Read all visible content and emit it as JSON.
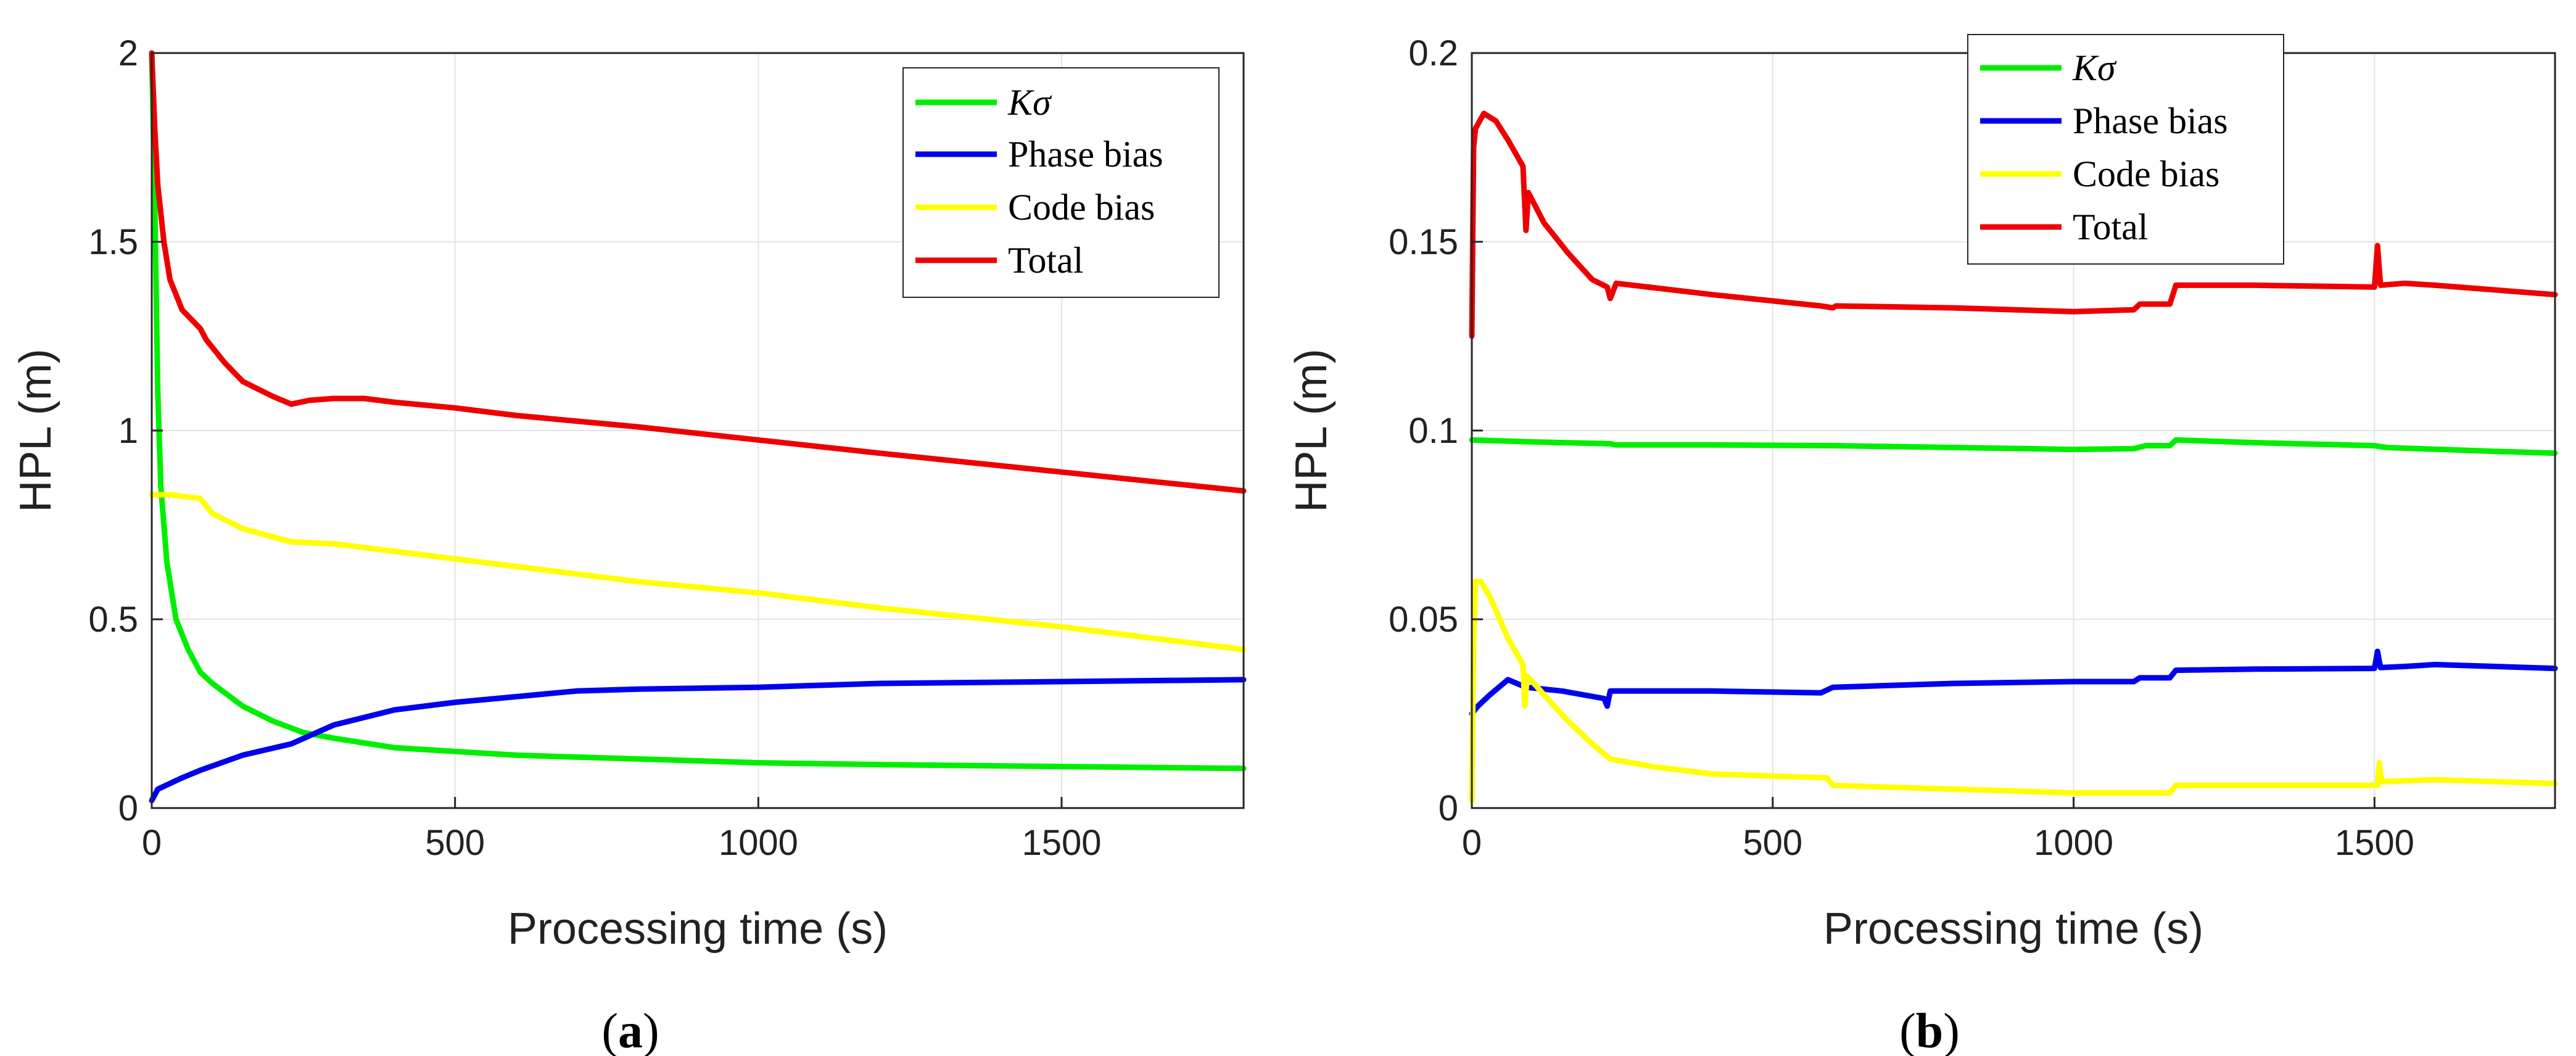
{
  "chart_data": [
    {
      "type": "line",
      "panel": "a",
      "caption_letter": "a",
      "xlabel": "Processing time (s)",
      "ylabel": "HPL (m)",
      "xlim": [
        0,
        1800
      ],
      "ylim": [
        0,
        2
      ],
      "xticks": [
        0,
        500,
        1000,
        1500
      ],
      "yticks": [
        0,
        0.5,
        1,
        1.5,
        2
      ],
      "ytick_labels": [
        "0",
        "0.5",
        "1",
        "1.5",
        "2"
      ],
      "legend_position": "top-right",
      "series": [
        {
          "name": "Kσ",
          "color": "#00ee00",
          "points": [
            [
              0,
              2.0
            ],
            [
              5,
              1.6
            ],
            [
              10,
              1.1
            ],
            [
              15,
              0.85
            ],
            [
              25,
              0.65
            ],
            [
              40,
              0.5
            ],
            [
              60,
              0.42
            ],
            [
              80,
              0.36
            ],
            [
              100,
              0.33
            ],
            [
              150,
              0.27
            ],
            [
              200,
              0.23
            ],
            [
              250,
              0.2
            ],
            [
              300,
              0.185
            ],
            [
              400,
              0.16
            ],
            [
              500,
              0.15
            ],
            [
              600,
              0.14
            ],
            [
              800,
              0.13
            ],
            [
              1000,
              0.12
            ],
            [
              1200,
              0.115
            ],
            [
              1500,
              0.11
            ],
            [
              1800,
              0.105
            ]
          ]
        },
        {
          "name": "Phase bias",
          "color": "#0000ee",
          "points": [
            [
              0,
              0.02
            ],
            [
              10,
              0.05
            ],
            [
              50,
              0.08
            ],
            [
              80,
              0.1
            ],
            [
              150,
              0.14
            ],
            [
              230,
              0.17
            ],
            [
              300,
              0.22
            ],
            [
              400,
              0.26
            ],
            [
              500,
              0.28
            ],
            [
              600,
              0.295
            ],
            [
              700,
              0.31
            ],
            [
              800,
              0.315
            ],
            [
              1000,
              0.32
            ],
            [
              1200,
              0.33
            ],
            [
              1500,
              0.335
            ],
            [
              1800,
              0.34
            ]
          ]
        },
        {
          "name": "Code bias",
          "color": "#ffff00",
          "points": [
            [
              0,
              0.83
            ],
            [
              30,
              0.83
            ],
            [
              80,
              0.82
            ],
            [
              100,
              0.78
            ],
            [
              150,
              0.74
            ],
            [
              230,
              0.705
            ],
            [
              300,
              0.7
            ],
            [
              400,
              0.68
            ],
            [
              500,
              0.66
            ],
            [
              600,
              0.64
            ],
            [
              800,
              0.6
            ],
            [
              1000,
              0.57
            ],
            [
              1200,
              0.53
            ],
            [
              1500,
              0.48
            ],
            [
              1800,
              0.42
            ]
          ]
        },
        {
          "name": "Total",
          "color": "#ee0000",
          "points": [
            [
              0,
              2.0
            ],
            [
              5,
              1.8
            ],
            [
              10,
              1.65
            ],
            [
              20,
              1.5
            ],
            [
              30,
              1.4
            ],
            [
              50,
              1.32
            ],
            [
              80,
              1.27
            ],
            [
              90,
              1.24
            ],
            [
              120,
              1.18
            ],
            [
              150,
              1.13
            ],
            [
              200,
              1.09
            ],
            [
              230,
              1.07
            ],
            [
              260,
              1.08
            ],
            [
              300,
              1.085
            ],
            [
              350,
              1.085
            ],
            [
              400,
              1.075
            ],
            [
              500,
              1.06
            ],
            [
              600,
              1.04
            ],
            [
              800,
              1.01
            ],
            [
              1000,
              0.975
            ],
            [
              1200,
              0.94
            ],
            [
              1500,
              0.89
            ],
            [
              1800,
              0.84
            ]
          ]
        }
      ]
    },
    {
      "type": "line",
      "panel": "b",
      "caption_letter": "b",
      "xlabel": "Processing time (s)",
      "ylabel": "HPL (m)",
      "xlim": [
        0,
        1800
      ],
      "ylim": [
        0,
        0.2
      ],
      "xticks": [
        0,
        500,
        1000,
        1500
      ],
      "yticks": [
        0,
        0.05,
        0.1,
        0.15,
        0.2
      ],
      "ytick_labels": [
        "0",
        "0.05",
        "0.1",
        "0.15",
        "0.2"
      ],
      "legend_position": "top-center",
      "series": [
        {
          "name": "Kσ",
          "color": "#00ee00",
          "points": [
            [
              0,
              0.0975
            ],
            [
              100,
              0.097
            ],
            [
              230,
              0.0965
            ],
            [
              240,
              0.0962
            ],
            [
              400,
              0.0962
            ],
            [
              600,
              0.096
            ],
            [
              800,
              0.0955
            ],
            [
              1000,
              0.095
            ],
            [
              1100,
              0.0952
            ],
            [
              1120,
              0.096
            ],
            [
              1160,
              0.096
            ],
            [
              1170,
              0.0975
            ],
            [
              1300,
              0.0968
            ],
            [
              1500,
              0.096
            ],
            [
              1520,
              0.0955
            ],
            [
              1700,
              0.0945
            ],
            [
              1800,
              0.094
            ]
          ]
        },
        {
          "name": "Phase bias",
          "color": "#0000ee",
          "points": [
            [
              0,
              0.025
            ],
            [
              10,
              0.027
            ],
            [
              30,
              0.03
            ],
            [
              60,
              0.034
            ],
            [
              90,
              0.032
            ],
            [
              150,
              0.031
            ],
            [
              220,
              0.029
            ],
            [
              225,
              0.027
            ],
            [
              230,
              0.031
            ],
            [
              400,
              0.031
            ],
            [
              580,
              0.0305
            ],
            [
              600,
              0.032
            ],
            [
              800,
              0.033
            ],
            [
              1000,
              0.0335
            ],
            [
              1100,
              0.0335
            ],
            [
              1110,
              0.0345
            ],
            [
              1160,
              0.0345
            ],
            [
              1170,
              0.0365
            ],
            [
              1300,
              0.0368
            ],
            [
              1500,
              0.037
            ],
            [
              1505,
              0.0415
            ],
            [
              1510,
              0.0372
            ],
            [
              1550,
              0.0375
            ],
            [
              1600,
              0.038
            ],
            [
              1800,
              0.037
            ]
          ]
        },
        {
          "name": "Code bias",
          "color": "#ffff00",
          "points": [
            [
              0,
              0.002
            ],
            [
              3,
              0.045
            ],
            [
              6,
              0.06
            ],
            [
              15,
              0.06
            ],
            [
              30,
              0.056
            ],
            [
              60,
              0.045
            ],
            [
              85,
              0.038
            ],
            [
              88,
              0.027
            ],
            [
              92,
              0.035
            ],
            [
              120,
              0.03
            ],
            [
              160,
              0.023
            ],
            [
              200,
              0.017
            ],
            [
              230,
              0.013
            ],
            [
              300,
              0.011
            ],
            [
              400,
              0.009
            ],
            [
              590,
              0.008
            ],
            [
              600,
              0.006
            ],
            [
              800,
              0.005
            ],
            [
              1000,
              0.004
            ],
            [
              1160,
              0.004
            ],
            [
              1170,
              0.006
            ],
            [
              1400,
              0.006
            ],
            [
              1505,
              0.006
            ],
            [
              1508,
              0.012
            ],
            [
              1512,
              0.007
            ],
            [
              1600,
              0.0075
            ],
            [
              1800,
              0.0065
            ]
          ]
        },
        {
          "name": "Total",
          "color": "#ee0000",
          "points": [
            [
              0,
              0.125
            ],
            [
              3,
              0.175
            ],
            [
              6,
              0.18
            ],
            [
              20,
              0.184
            ],
            [
              40,
              0.182
            ],
            [
              60,
              0.177
            ],
            [
              85,
              0.17
            ],
            [
              90,
              0.153
            ],
            [
              94,
              0.163
            ],
            [
              120,
              0.155
            ],
            [
              160,
              0.147
            ],
            [
              200,
              0.14
            ],
            [
              225,
              0.138
            ],
            [
              230,
              0.135
            ],
            [
              240,
              0.139
            ],
            [
              400,
              0.136
            ],
            [
              580,
              0.133
            ],
            [
              600,
              0.1325
            ],
            [
              605,
              0.133
            ],
            [
              800,
              0.1325
            ],
            [
              1000,
              0.1315
            ],
            [
              1100,
              0.132
            ],
            [
              1110,
              0.1335
            ],
            [
              1160,
              0.1335
            ],
            [
              1170,
              0.1385
            ],
            [
              1300,
              0.1385
            ],
            [
              1500,
              0.138
            ],
            [
              1505,
              0.149
            ],
            [
              1510,
              0.1385
            ],
            [
              1550,
              0.139
            ],
            [
              1600,
              0.1385
            ],
            [
              1800,
              0.136
            ]
          ]
        }
      ]
    }
  ]
}
